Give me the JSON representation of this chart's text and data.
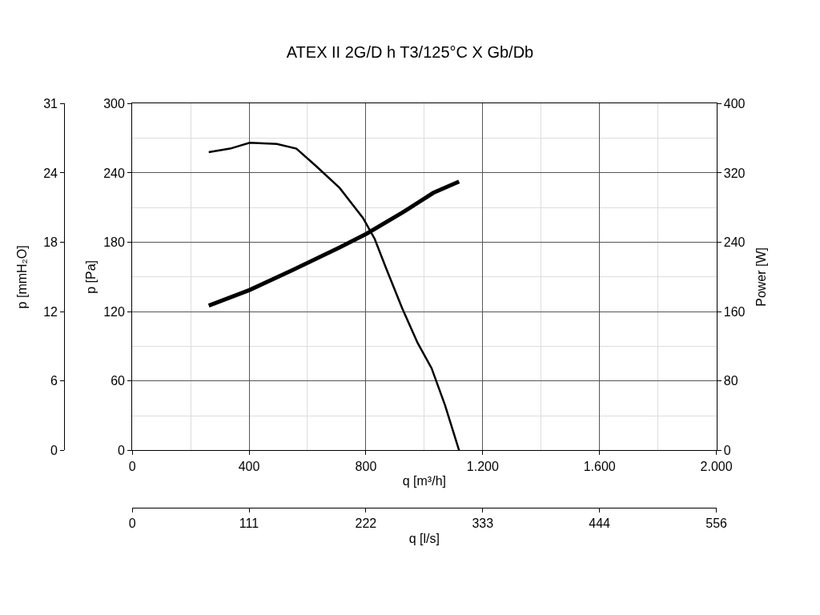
{
  "chart_data": {
    "type": "line",
    "title": "ATEX II 2G/D h T3/125°C X Gb/Db",
    "xlabel": "q [m³/h]",
    "ylabel": "p [Pa]",
    "y2label": "Power [W]",
    "y3label": "p [mmH₂O]",
    "x2label": "q [l/s]",
    "series": [
      {
        "color": "#000000",
        "axis": "y",
        "x": [
          262,
          335,
          402,
          495,
          562,
          629,
          710,
          790,
          830,
          870,
          924,
          977,
          1025,
          1071,
          1119
        ],
        "values": [
          258,
          261,
          266,
          265,
          261,
          246,
          227,
          201,
          183,
          157,
          123,
          93,
          71,
          39,
          0
        ]
      },
      {
        "color": "#000000",
        "axis": "y2",
        "x": [
          262,
          402,
          549,
          710,
          803,
          924,
          1031,
          1119
        ],
        "values": [
          167,
          185,
          208,
          234,
          250,
          274,
          297,
          310
        ]
      }
    ],
    "xlim": [
      0,
      2000
    ],
    "xticks": [
      0,
      400,
      800,
      {
        "value": 1200,
        "label": "1.200"
      },
      {
        "value": 1600,
        "label": "1.600"
      },
      {
        "value": 2000,
        "label": "2.000"
      }
    ],
    "ylim": [
      0,
      300
    ],
    "yticks": [
      0,
      60,
      120,
      180,
      240,
      300
    ],
    "y2lim": [
      0,
      400
    ],
    "y2ticks": [
      0,
      80,
      160,
      240,
      320,
      400
    ],
    "y3lim": [
      0,
      30.59
    ],
    "y3ticks": [
      0,
      {
        "value": 6.12,
        "label": "6"
      },
      {
        "value": 12.24,
        "label": "12"
      },
      {
        "value": 18.35,
        "label": "18"
      },
      {
        "value": 24.47,
        "label": "24"
      },
      {
        "value": 30.59,
        "label": "31"
      }
    ],
    "x2lim": [
      0,
      555.6
    ],
    "x2ticks": [
      0,
      {
        "value": 111.1,
        "label": "111"
      },
      {
        "value": 222.2,
        "label": "222"
      },
      {
        "value": 333.3,
        "label": "333"
      },
      {
        "value": 444.4,
        "label": "444"
      },
      {
        "value": 555.6,
        "label": "556"
      }
    ],
    "grid": true,
    "marker": "none",
    "line_style": "solid"
  }
}
